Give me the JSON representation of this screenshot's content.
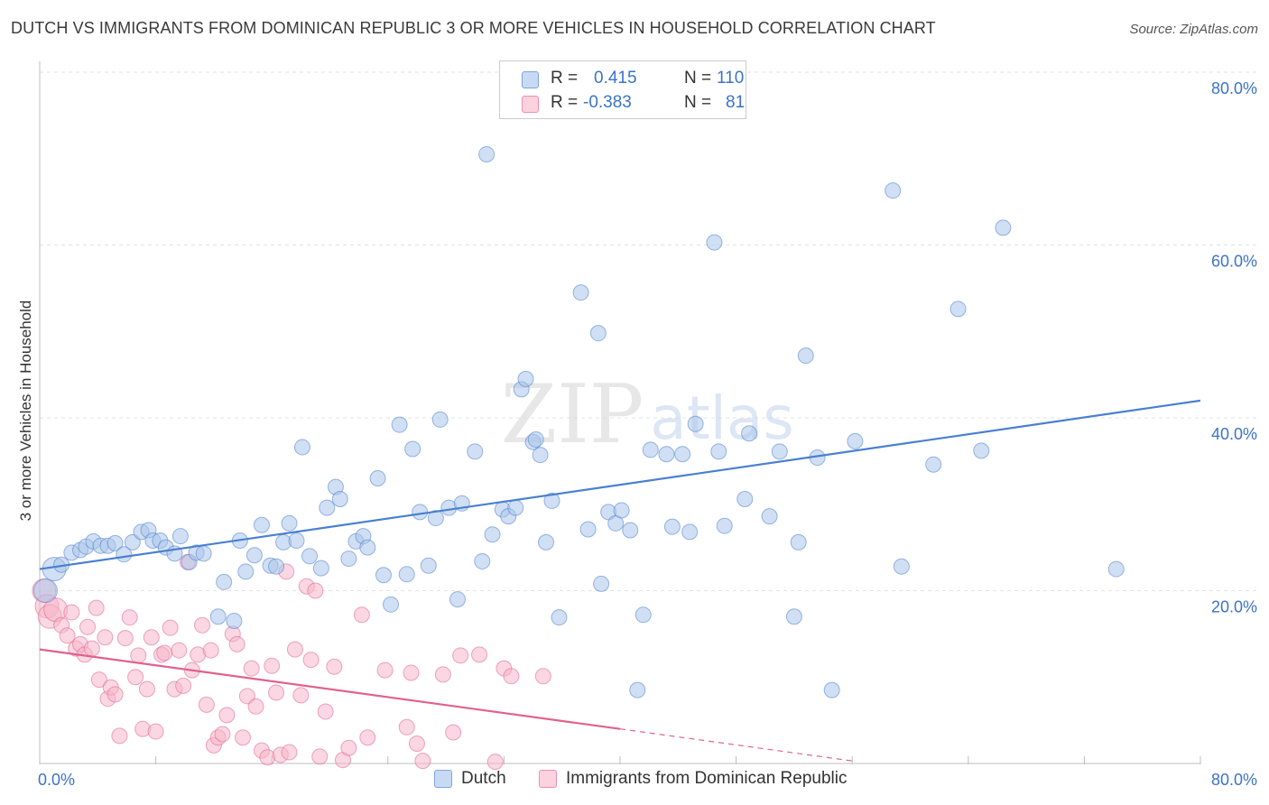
{
  "header": {
    "title": "DUTCH VS IMMIGRANTS FROM DOMINICAN REPUBLIC 3 OR MORE VEHICLES IN HOUSEHOLD CORRELATION CHART",
    "source": "Source: ZipAtlas.com"
  },
  "watermark": {
    "zip": "ZIP",
    "atlas": "atlas"
  },
  "legend": {
    "rows": [
      {
        "r_label": "R =",
        "r_value": "0.415",
        "n_label": "N =",
        "n_value": "110",
        "color": "#a9c5ea"
      },
      {
        "r_label": "R =",
        "r_value": "-0.383",
        "n_label": "N =",
        "n_value": "81",
        "color": "#f6b7ca"
      }
    ]
  },
  "bottom_legend": {
    "items": [
      {
        "label": "Dutch",
        "color": "#a9c5ea"
      },
      {
        "label": "Immigrants from Dominican Republic",
        "color": "#f6b7ca"
      }
    ]
  },
  "chart_data": {
    "type": "scatter",
    "title": "DUTCH VS IMMIGRANTS FROM DOMINICAN REPUBLIC 3 OR MORE VEHICLES IN HOUSEHOLD CORRELATION CHART",
    "xlabel": "",
    "ylabel": "3 or more Vehicles in Household",
    "xlim": [
      0,
      80
    ],
    "ylim": [
      0,
      80
    ],
    "x_tick_labels": [
      "0.0%",
      "80.0%"
    ],
    "y_tick_labels": [
      "20.0%",
      "40.0%",
      "60.0%",
      "80.0%"
    ],
    "y_ticks": [
      20,
      40,
      60,
      80
    ],
    "grid": true,
    "legend_position": "top-center",
    "series": [
      {
        "name": "Dutch",
        "color": "#4a80d0",
        "fill": "#a9c5ea",
        "trend": {
          "x": [
            0,
            80
          ],
          "y": [
            22.5,
            42.0
          ],
          "style": "solid"
        },
        "points": [
          [
            0.4,
            20.0
          ],
          [
            1.0,
            22.5
          ],
          [
            1.5,
            23.0
          ],
          [
            2.2,
            24.4
          ],
          [
            2.8,
            24.7
          ],
          [
            3.2,
            25.1
          ],
          [
            3.7,
            25.7
          ],
          [
            4.2,
            25.2
          ],
          [
            4.7,
            25.2
          ],
          [
            5.2,
            25.5
          ],
          [
            5.8,
            24.2
          ],
          [
            6.4,
            25.6
          ],
          [
            7.0,
            26.8
          ],
          [
            7.5,
            27.0
          ],
          [
            7.8,
            25.8
          ],
          [
            8.3,
            25.8
          ],
          [
            8.7,
            25.0
          ],
          [
            9.3,
            24.3
          ],
          [
            9.7,
            26.3
          ],
          [
            10.3,
            23.3
          ],
          [
            10.8,
            24.4
          ],
          [
            11.3,
            24.3
          ],
          [
            12.3,
            17.0
          ],
          [
            12.7,
            21.0
          ],
          [
            13.4,
            16.5
          ],
          [
            13.8,
            25.8
          ],
          [
            14.2,
            22.2
          ],
          [
            14.8,
            24.1
          ],
          [
            15.3,
            27.6
          ],
          [
            15.9,
            22.9
          ],
          [
            16.3,
            22.8
          ],
          [
            16.8,
            25.6
          ],
          [
            17.2,
            27.8
          ],
          [
            17.7,
            25.8
          ],
          [
            18.1,
            36.6
          ],
          [
            18.6,
            24.0
          ],
          [
            19.4,
            22.6
          ],
          [
            19.8,
            29.6
          ],
          [
            20.4,
            32.0
          ],
          [
            20.7,
            30.6
          ],
          [
            21.3,
            23.7
          ],
          [
            21.8,
            25.7
          ],
          [
            22.3,
            26.3
          ],
          [
            22.6,
            25.0
          ],
          [
            23.3,
            33.0
          ],
          [
            23.7,
            21.8
          ],
          [
            24.2,
            18.4
          ],
          [
            24.8,
            39.2
          ],
          [
            25.3,
            21.9
          ],
          [
            25.7,
            36.4
          ],
          [
            26.2,
            29.1
          ],
          [
            26.8,
            22.9
          ],
          [
            27.3,
            28.4
          ],
          [
            27.6,
            39.8
          ],
          [
            28.2,
            29.6
          ],
          [
            28.8,
            19.0
          ],
          [
            29.1,
            30.1
          ],
          [
            30.0,
            36.1
          ],
          [
            30.5,
            23.4
          ],
          [
            30.8,
            70.5
          ],
          [
            31.2,
            26.5
          ],
          [
            31.9,
            29.4
          ],
          [
            32.3,
            28.6
          ],
          [
            32.8,
            29.6
          ],
          [
            33.2,
            43.3
          ],
          [
            33.5,
            44.5
          ],
          [
            34.0,
            37.2
          ],
          [
            34.2,
            37.5
          ],
          [
            34.5,
            35.7
          ],
          [
            34.9,
            25.6
          ],
          [
            35.3,
            30.4
          ],
          [
            35.8,
            16.9
          ],
          [
            37.3,
            54.5
          ],
          [
            37.8,
            27.1
          ],
          [
            38.5,
            49.8
          ],
          [
            38.7,
            20.8
          ],
          [
            39.2,
            29.1
          ],
          [
            39.7,
            27.8
          ],
          [
            40.1,
            29.3
          ],
          [
            40.7,
            27.0
          ],
          [
            41.2,
            8.5
          ],
          [
            41.6,
            17.2
          ],
          [
            42.1,
            36.3
          ],
          [
            43.2,
            35.8
          ],
          [
            43.6,
            27.4
          ],
          [
            44.3,
            35.8
          ],
          [
            44.8,
            26.8
          ],
          [
            45.2,
            39.3
          ],
          [
            46.5,
            60.3
          ],
          [
            46.8,
            36.1
          ],
          [
            47.2,
            27.5
          ],
          [
            48.6,
            30.6
          ],
          [
            48.9,
            38.2
          ],
          [
            50.3,
            28.6
          ],
          [
            51.0,
            36.1
          ],
          [
            52.0,
            17.0
          ],
          [
            52.3,
            25.6
          ],
          [
            52.8,
            47.2
          ],
          [
            53.6,
            35.4
          ],
          [
            54.6,
            8.5
          ],
          [
            56.2,
            37.3
          ],
          [
            58.8,
            66.3
          ],
          [
            59.4,
            22.8
          ],
          [
            61.6,
            34.6
          ],
          [
            63.3,
            52.6
          ],
          [
            64.9,
            36.2
          ],
          [
            66.4,
            62.0
          ],
          [
            74.2,
            22.5
          ]
        ]
      },
      {
        "name": "Immigrants from Dominican Republic",
        "color": "#e0628c",
        "fill": "#f6b7ca",
        "trend": {
          "x": [
            0,
            40
          ],
          "y": [
            13.2,
            4.0
          ],
          "style": "solid",
          "dashed_extension": {
            "x": [
              40,
              56
            ],
            "y": [
              4.0,
              0.3
            ]
          }
        },
        "points": [
          [
            0.3,
            20.0
          ],
          [
            0.5,
            18.2
          ],
          [
            0.7,
            17.0
          ],
          [
            1.1,
            17.8
          ],
          [
            1.5,
            16.0
          ],
          [
            1.9,
            14.8
          ],
          [
            2.2,
            17.5
          ],
          [
            2.5,
            13.3
          ],
          [
            2.8,
            13.8
          ],
          [
            3.1,
            12.6
          ],
          [
            3.3,
            15.8
          ],
          [
            3.6,
            13.3
          ],
          [
            3.9,
            18.0
          ],
          [
            4.1,
            9.7
          ],
          [
            4.5,
            14.6
          ],
          [
            4.7,
            7.5
          ],
          [
            4.9,
            8.8
          ],
          [
            5.2,
            8.0
          ],
          [
            5.5,
            3.2
          ],
          [
            5.9,
            14.5
          ],
          [
            6.2,
            16.9
          ],
          [
            6.6,
            10.0
          ],
          [
            6.8,
            12.5
          ],
          [
            7.1,
            4.0
          ],
          [
            7.4,
            8.6
          ],
          [
            7.7,
            14.6
          ],
          [
            8.0,
            3.7
          ],
          [
            8.4,
            12.6
          ],
          [
            8.6,
            12.8
          ],
          [
            9.0,
            15.7
          ],
          [
            9.3,
            8.6
          ],
          [
            9.6,
            13.1
          ],
          [
            9.9,
            9.0
          ],
          [
            10.2,
            23.3
          ],
          [
            10.5,
            10.8
          ],
          [
            10.9,
            12.6
          ],
          [
            11.2,
            16.0
          ],
          [
            11.5,
            6.8
          ],
          [
            11.8,
            13.1
          ],
          [
            12.0,
            2.1
          ],
          [
            12.3,
            3.0
          ],
          [
            12.6,
            3.4
          ],
          [
            12.9,
            5.6
          ],
          [
            13.3,
            15.0
          ],
          [
            13.6,
            13.8
          ],
          [
            14.0,
            3.0
          ],
          [
            14.3,
            7.8
          ],
          [
            14.6,
            11.0
          ],
          [
            14.9,
            6.6
          ],
          [
            15.3,
            1.5
          ],
          [
            15.7,
            0.7
          ],
          [
            16.0,
            11.3
          ],
          [
            16.3,
            8.2
          ],
          [
            16.6,
            1.0
          ],
          [
            17.0,
            22.2
          ],
          [
            17.2,
            1.3
          ],
          [
            17.6,
            13.2
          ],
          [
            18.0,
            7.9
          ],
          [
            18.4,
            20.5
          ],
          [
            18.7,
            12.0
          ],
          [
            19.0,
            20.0
          ],
          [
            19.3,
            0.8
          ],
          [
            19.7,
            6.0
          ],
          [
            20.3,
            11.2
          ],
          [
            20.9,
            0.4
          ],
          [
            21.3,
            1.8
          ],
          [
            22.2,
            17.2
          ],
          [
            22.6,
            3.0
          ],
          [
            23.8,
            10.8
          ],
          [
            25.3,
            4.2
          ],
          [
            25.6,
            10.5
          ],
          [
            26.0,
            2.3
          ],
          [
            26.4,
            0.3
          ],
          [
            27.8,
            10.3
          ],
          [
            28.5,
            3.6
          ],
          [
            29.0,
            12.5
          ],
          [
            30.3,
            12.6
          ],
          [
            31.4,
            0.2
          ],
          [
            32.0,
            11.0
          ],
          [
            32.5,
            10.1
          ],
          [
            34.7,
            10.1
          ]
        ]
      }
    ]
  }
}
